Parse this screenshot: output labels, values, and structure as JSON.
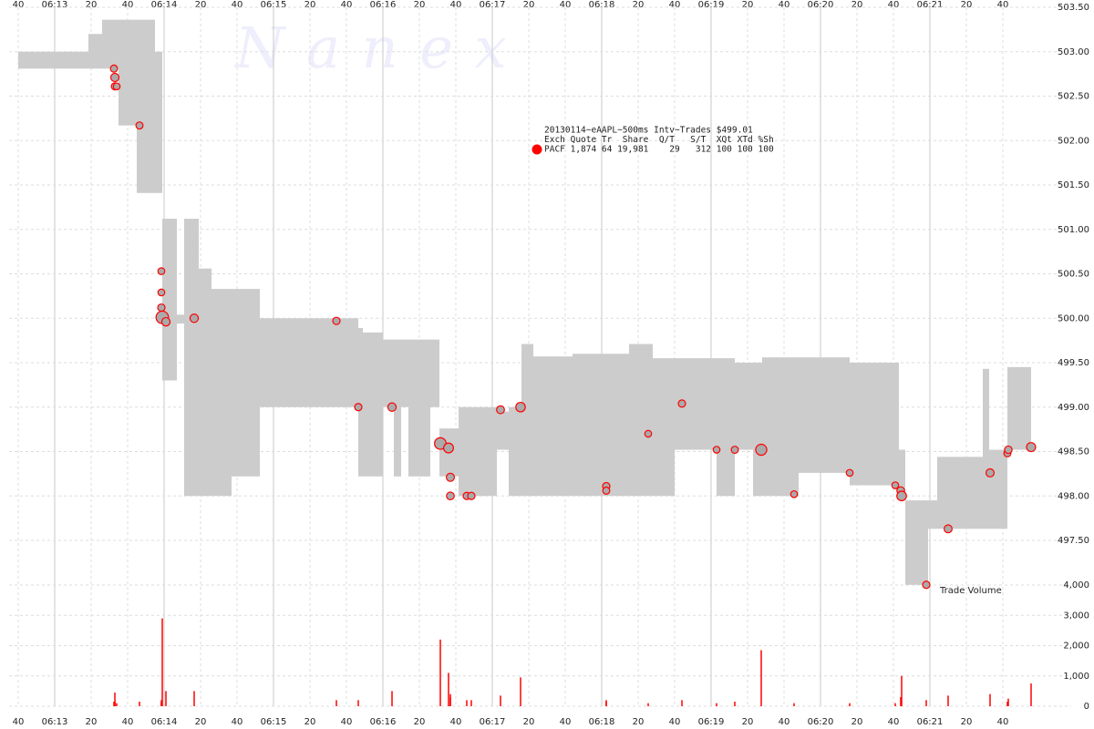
{
  "chart_data": {
    "type": "nbbo",
    "watermark": "N a n e x",
    "info": [
      "20130114~eAAPL~500ms Intv~Trades $499.01",
      "Exch Quote Tr  Share  Q/T   S/T  XQt XTd %Sh",
      "PACF 1,874 64 19,981    29   312 100 100 100"
    ],
    "info_color": "#ff0000",
    "volume_label": "Trade Volume",
    "xlim": [
      755,
      1337.5
    ],
    "xticks": [
      {
        "value": 760,
        "label": "40"
      },
      {
        "value": 780,
        "label": "06:13"
      },
      {
        "value": 800,
        "label": "20"
      },
      {
        "value": 820,
        "label": "40"
      },
      {
        "value": 840,
        "label": "06:14"
      },
      {
        "value": 860,
        "label": "20"
      },
      {
        "value": 880,
        "label": "40"
      },
      {
        "value": 900,
        "label": "06:15"
      },
      {
        "value": 920,
        "label": "20"
      },
      {
        "value": 940,
        "label": "40"
      },
      {
        "value": 960,
        "label": "06:16"
      },
      {
        "value": 980,
        "label": "20"
      },
      {
        "value": 1000,
        "label": "40"
      },
      {
        "value": 1020,
        "label": "06:17"
      },
      {
        "value": 1040,
        "label": "20"
      },
      {
        "value": 1060,
        "label": "40"
      },
      {
        "value": 1080,
        "label": "06:18"
      },
      {
        "value": 1100,
        "label": "20"
      },
      {
        "value": 1120,
        "label": "40"
      },
      {
        "value": 1140,
        "label": "06:19"
      },
      {
        "value": 1160,
        "label": "20"
      },
      {
        "value": 1180,
        "label": "40"
      },
      {
        "value": 1200,
        "label": "06:20"
      },
      {
        "value": 1220,
        "label": "20"
      },
      {
        "value": 1240,
        "label": "40"
      },
      {
        "value": 1260,
        "label": "06:21"
      },
      {
        "value": 1280,
        "label": "20"
      },
      {
        "value": 1300,
        "label": "40"
      }
    ],
    "ylim": [
      497.5,
      503.5
    ],
    "yticks": [
      {
        "value": 497.5,
        "label": "497.50"
      },
      {
        "value": 498,
        "label": "498.00"
      },
      {
        "value": 498.5,
        "label": "498.50"
      },
      {
        "value": 499,
        "label": "499.00"
      },
      {
        "value": 499.5,
        "label": "499.50"
      },
      {
        "value": 500,
        "label": "500.00"
      },
      {
        "value": 500.5,
        "label": "500.50"
      },
      {
        "value": 501,
        "label": "501.00"
      },
      {
        "value": 501.5,
        "label": "501.50"
      },
      {
        "value": 502,
        "label": "502.00"
      },
      {
        "value": 502.5,
        "label": "502.50"
      },
      {
        "value": 503,
        "label": "503.00"
      },
      {
        "value": 503.5,
        "label": "503.50"
      }
    ],
    "y2lim": [
      0,
      4000
    ],
    "y2ticks": [
      0,
      {
        "value": 1000,
        "label": "1,000"
      },
      {
        "value": 2000,
        "label": "2,000"
      },
      {
        "value": 3000,
        "label": "3,000"
      },
      {
        "value": 4000,
        "label": "4,000"
      }
    ],
    "grid": true,
    "quote": {
      "color": "#cccccc",
      "edges": [
        760,
        798.5,
        806,
        815,
        825,
        835,
        839,
        847,
        851,
        859,
        866,
        877,
        892.5,
        946.5,
        949,
        960,
        966,
        970,
        974,
        986,
        991,
        1001.5,
        1022.5,
        1029,
        1036,
        1042.5,
        1064,
        1095,
        1108,
        1120,
        1143,
        1153,
        1163,
        1168,
        1188,
        1216,
        1243,
        1246.5,
        1259,
        1264,
        1289,
        1292.5,
        1302.5,
        1315.5
      ],
      "ask": [
        503.0,
        503.2,
        503.36,
        503.36,
        503.36,
        503.0,
        501.12,
        500.04,
        501.12,
        500.56,
        500.33,
        500.33,
        500.0,
        499.89,
        499.84,
        499.76,
        499.76,
        499.76,
        499.76,
        499.76,
        498.76,
        499.0,
        498.95,
        499.0,
        499.71,
        499.57,
        499.6,
        499.71,
        499.55,
        499.55,
        499.55,
        499.5,
        499.5,
        499.56,
        499.56,
        499.5,
        498.52,
        497.95,
        497.95,
        498.44,
        499.43,
        498.52,
        499.45
      ],
      "bid": [
        502.81,
        502.81,
        502.81,
        502.17,
        501.41,
        501.41,
        499.3,
        499.94,
        498.0,
        498.0,
        498.0,
        498.22,
        499.0,
        498.22,
        498.22,
        499.0,
        498.22,
        499.0,
        498.22,
        499.0,
        498.22,
        498.0,
        498.52,
        498.0,
        498.0,
        498.0,
        498.0,
        498.0,
        498.0,
        498.52,
        498.0,
        498.52,
        498.0,
        498.0,
        498.26,
        498.12,
        497.95,
        497.0,
        497.63,
        497.63,
        497.63,
        497.63,
        498.52
      ]
    },
    "trades": {
      "color": "#ff0000",
      "x": [
        812.5,
        813,
        813,
        814,
        826.5,
        838.5,
        838.5,
        838.5,
        839,
        841,
        856.5,
        934.5,
        946.5,
        965,
        991.5,
        996,
        997,
        997,
        1006,
        1008.5,
        1024.5,
        1035.5,
        1082.5,
        1082.5,
        1105.5,
        1124,
        1143,
        1153,
        1167.5,
        1185.5,
        1216,
        1241,
        1244,
        1244.5,
        1258,
        1270,
        1293,
        1302.5,
        1303,
        1315.5
      ],
      "price": [
        502.81,
        502.71,
        502.61,
        502.61,
        502.17,
        500.53,
        500.29,
        500.12,
        500.01,
        499.96,
        500.0,
        499.97,
        499.0,
        499.0,
        498.59,
        498.54,
        498.21,
        498.0,
        498.0,
        498.0,
        498.97,
        499.0,
        498.11,
        498.06,
        498.7,
        499.04,
        498.52,
        498.52,
        498.52,
        498.02,
        498.26,
        498.12,
        498.06,
        498.0,
        497.0,
        497.63,
        498.26,
        498.48,
        498.52,
        498.55
      ],
      "volume": [
        150,
        450,
        150,
        100,
        150,
        100,
        100,
        200,
        2900,
        500,
        500,
        200,
        200,
        500,
        2200,
        1100,
        400,
        300,
        200,
        200,
        350,
        950,
        200,
        150,
        100,
        200,
        100,
        150,
        1850,
        100,
        100,
        100,
        300,
        1000,
        200,
        350,
        400,
        150,
        250,
        750
      ]
    }
  }
}
